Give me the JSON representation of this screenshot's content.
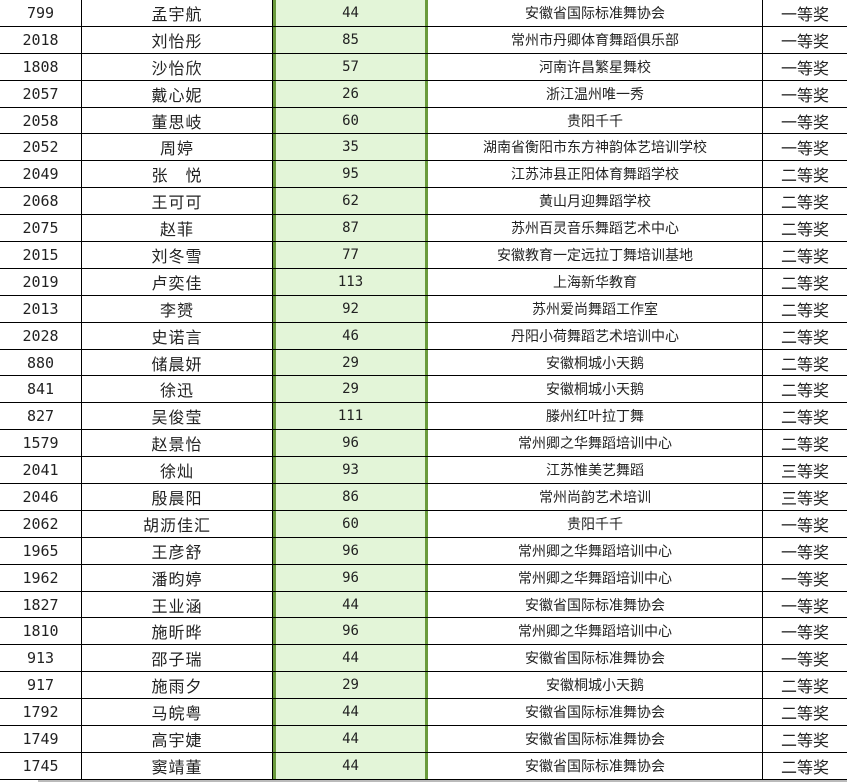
{
  "table": {
    "accent_color": "#6a9a3c",
    "score_fill": "#e3f5d8",
    "rows": [
      {
        "id": "799",
        "name": "孟宇航",
        "score": "44",
        "org": "安徽省国际标准舞协会",
        "award": "一等奖"
      },
      {
        "id": "2018",
        "name": "刘怡彤",
        "score": "85",
        "org": "常州市丹卿体育舞蹈俱乐部",
        "award": "一等奖"
      },
      {
        "id": "1808",
        "name": "沙怡欣",
        "score": "57",
        "org": "河南许昌繁星舞校",
        "award": "一等奖"
      },
      {
        "id": "2057",
        "name": "戴心妮",
        "score": "26",
        "org": "浙江温州唯一秀",
        "award": "一等奖"
      },
      {
        "id": "2058",
        "name": "董思岐",
        "score": "60",
        "org": "贵阳千千",
        "award": "一等奖"
      },
      {
        "id": "2052",
        "name": "周婷",
        "score": "35",
        "org": "湖南省衡阳市东方神韵体艺培训学校",
        "award": "一等奖"
      },
      {
        "id": "2049",
        "name": "张　悦",
        "score": "95",
        "org": "江苏沛县正阳体育舞蹈学校",
        "award": "二等奖"
      },
      {
        "id": "2068",
        "name": "王可可",
        "score": "62",
        "org": "黄山月迎舞蹈学校",
        "award": "二等奖"
      },
      {
        "id": "2075",
        "name": "赵菲",
        "score": "87",
        "org": "苏州百灵音乐舞蹈艺术中心",
        "award": "二等奖"
      },
      {
        "id": "2015",
        "name": "刘冬雪",
        "score": "77",
        "org": "安徽教育一定远拉丁舞培训基地",
        "award": "二等奖"
      },
      {
        "id": "2019",
        "name": "卢奕佳",
        "score": "113",
        "org": "上海新华教育",
        "award": "二等奖"
      },
      {
        "id": "2013",
        "name": "李赟",
        "score": "92",
        "org": "苏州爱尚舞蹈工作室",
        "award": "二等奖"
      },
      {
        "id": "2028",
        "name": "史诺言",
        "score": "46",
        "org": "丹阳小荷舞蹈艺术培训中心",
        "award": "二等奖"
      },
      {
        "id": "880",
        "name": "储晨妍",
        "score": "29",
        "org": "安徽桐城小天鹅",
        "award": "二等奖"
      },
      {
        "id": "841",
        "name": "徐迅",
        "score": "29",
        "org": "安徽桐城小天鹅",
        "award": "二等奖"
      },
      {
        "id": "827",
        "name": "吴俊莹",
        "score": "111",
        "org": "滕州红叶拉丁舞",
        "award": "二等奖"
      },
      {
        "id": "1579",
        "name": "赵景怡",
        "score": "96",
        "org": "常州卿之华舞蹈培训中心",
        "award": "二等奖"
      },
      {
        "id": "2041",
        "name": "徐灿",
        "score": "93",
        "org": "江苏惟美艺舞蹈",
        "award": "三等奖"
      },
      {
        "id": "2046",
        "name": "殷晨阳",
        "score": "86",
        "org": "常州尚韵艺术培训",
        "award": "三等奖"
      },
      {
        "id": "2062",
        "name": "胡沥佳汇",
        "score": "60",
        "org": "贵阳千千",
        "award": "一等奖"
      },
      {
        "id": "1965",
        "name": "王彦舒",
        "score": "96",
        "org": "常州卿之华舞蹈培训中心",
        "award": "一等奖"
      },
      {
        "id": "1962",
        "name": "潘昀婷",
        "score": "96",
        "org": "常州卿之华舞蹈培训中心",
        "award": "一等奖"
      },
      {
        "id": "1827",
        "name": "王业涵",
        "score": "44",
        "org": "安徽省国际标准舞协会",
        "award": "一等奖"
      },
      {
        "id": "1810",
        "name": "施昕晔",
        "score": "96",
        "org": "常州卿之华舞蹈培训中心",
        "award": "一等奖"
      },
      {
        "id": "913",
        "name": "邵子瑞",
        "score": "44",
        "org": "安徽省国际标准舞协会",
        "award": "一等奖"
      },
      {
        "id": "917",
        "name": "施雨夕",
        "score": "29",
        "org": "安徽桐城小天鹅",
        "award": "二等奖"
      },
      {
        "id": "1792",
        "name": "马皖粤",
        "score": "44",
        "org": "安徽省国际标准舞协会",
        "award": "二等奖"
      },
      {
        "id": "1749",
        "name": "高宇婕",
        "score": "44",
        "org": "安徽省国际标准舞协会",
        "award": "二等奖"
      },
      {
        "id": "1745",
        "name": "窦靖董",
        "score": "44",
        "org": "安徽省国际标准舞协会",
        "award": "二等奖"
      }
    ]
  }
}
